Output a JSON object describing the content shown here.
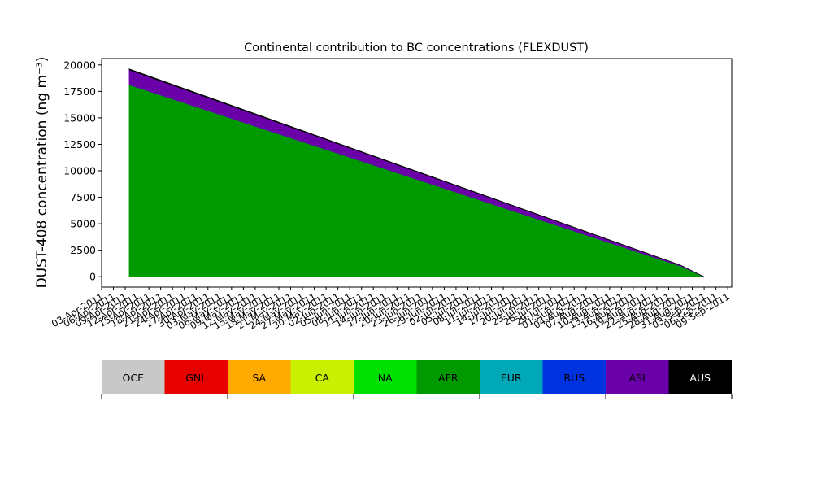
{
  "chart_data": {
    "type": "stacked-area",
    "title": "Continental contribution to BC concentrations (FLEXDUST)",
    "y_label": "DUST-408 concentration (ng m⁻³)",
    "x": [
      "2011-04-10",
      "2011-08-28",
      "2011-09-03"
    ],
    "series": [
      {
        "name": "OCE",
        "color": "#c8c8c8",
        "values": [
          0,
          0,
          0
        ]
      },
      {
        "name": "GNL",
        "color": "#e60000",
        "values": [
          0,
          0,
          0
        ]
      },
      {
        "name": "SA",
        "color": "#ffaa00",
        "values": [
          0,
          0,
          0
        ]
      },
      {
        "name": "CA",
        "color": "#c8f000",
        "values": [
          30,
          5,
          0
        ]
      },
      {
        "name": "NA",
        "color": "#00e000",
        "values": [
          0,
          0,
          0
        ]
      },
      {
        "name": "AFR",
        "color": "#009a00",
        "values": [
          18100,
          1000,
          0
        ]
      },
      {
        "name": "EUR",
        "color": "#00a8b8",
        "values": [
          0,
          0,
          0
        ]
      },
      {
        "name": "RUS",
        "color": "#0032e0",
        "values": [
          0,
          0,
          0
        ]
      },
      {
        "name": "ASI",
        "color": "#6a00a8",
        "values": [
          1400,
          80,
          0
        ]
      },
      {
        "name": "AUS",
        "color": "#000000",
        "values": [
          100,
          20,
          0
        ]
      }
    ],
    "xlim": [
      "2011-04-03",
      "2011-09-10"
    ],
    "xticks": [
      {
        "value": "2011-04-03",
        "label": "03-Apr-2011"
      },
      {
        "value": "2011-04-06",
        "label": "06-Apr-2011"
      },
      {
        "value": "2011-04-09",
        "label": "09-Apr-2011"
      },
      {
        "value": "2011-04-12",
        "label": "12-Apr-2011"
      },
      {
        "value": "2011-04-15",
        "label": "15-Apr-2011"
      },
      {
        "value": "2011-04-18",
        "label": "18-Apr-2011"
      },
      {
        "value": "2011-04-21",
        "label": "21-Apr-2011"
      },
      {
        "value": "2011-04-24",
        "label": "24-Apr-2011"
      },
      {
        "value": "2011-04-27",
        "label": "27-Apr-2011"
      },
      {
        "value": "2011-04-30",
        "label": "30-Apr-2011"
      },
      {
        "value": "2011-05-03",
        "label": "03-May-2011"
      },
      {
        "value": "2011-05-06",
        "label": "06-May-2011"
      },
      {
        "value": "2011-05-09",
        "label": "09-May-2011"
      },
      {
        "value": "2011-05-12",
        "label": "12-May-2011"
      },
      {
        "value": "2011-05-15",
        "label": "15-May-2011"
      },
      {
        "value": "2011-05-18",
        "label": "18-May-2011"
      },
      {
        "value": "2011-05-21",
        "label": "21-May-2011"
      },
      {
        "value": "2011-05-24",
        "label": "24-May-2011"
      },
      {
        "value": "2011-05-27",
        "label": "27-May-2011"
      },
      {
        "value": "2011-05-30",
        "label": "30-May-2011"
      },
      {
        "value": "2011-06-02",
        "label": "02-Jun-2011"
      },
      {
        "value": "2011-06-05",
        "label": "05-Jun-2011"
      },
      {
        "value": "2011-06-08",
        "label": "08-Jun-2011"
      },
      {
        "value": "2011-06-11",
        "label": "11-Jun-2011"
      },
      {
        "value": "2011-06-14",
        "label": "14-Jun-2011"
      },
      {
        "value": "2011-06-17",
        "label": "17-Jun-2011"
      },
      {
        "value": "2011-06-20",
        "label": "20-Jun-2011"
      },
      {
        "value": "2011-06-23",
        "label": "23-Jun-2011"
      },
      {
        "value": "2011-06-26",
        "label": "26-Jun-2011"
      },
      {
        "value": "2011-06-29",
        "label": "29-Jun-2011"
      },
      {
        "value": "2011-07-02",
        "label": "02-Jul-2011"
      },
      {
        "value": "2011-07-05",
        "label": "05-Jul-2011"
      },
      {
        "value": "2011-07-08",
        "label": "08-Jul-2011"
      },
      {
        "value": "2011-07-11",
        "label": "11-Jul-2011"
      },
      {
        "value": "2011-07-14",
        "label": "14-Jul-2011"
      },
      {
        "value": "2011-07-17",
        "label": "17-Jul-2011"
      },
      {
        "value": "2011-07-20",
        "label": "20-Jul-2011"
      },
      {
        "value": "2011-07-23",
        "label": "23-Jul-2011"
      },
      {
        "value": "2011-07-26",
        "label": "26-Jul-2011"
      },
      {
        "value": "2011-07-29",
        "label": "29-Jul-2011"
      },
      {
        "value": "2011-08-01",
        "label": "01-Aug-2011"
      },
      {
        "value": "2011-08-04",
        "label": "04-Aug-2011"
      },
      {
        "value": "2011-08-07",
        "label": "07-Aug-2011"
      },
      {
        "value": "2011-08-10",
        "label": "10-Aug-2011"
      },
      {
        "value": "2011-08-13",
        "label": "13-Aug-2011"
      },
      {
        "value": "2011-08-16",
        "label": "16-Aug-2011"
      },
      {
        "value": "2011-08-19",
        "label": "19-Aug-2011"
      },
      {
        "value": "2011-08-22",
        "label": "22-Aug-2011"
      },
      {
        "value": "2011-08-25",
        "label": "25-Aug-2011"
      },
      {
        "value": "2011-08-28",
        "label": "28-Aug-2011"
      },
      {
        "value": "2011-08-31",
        "label": "31-Aug-2011"
      },
      {
        "value": "2011-09-03",
        "label": "03-Sep-2011"
      },
      {
        "value": "2011-09-06",
        "label": "06-Sep-2011"
      },
      {
        "value": "2011-09-09",
        "label": "09-Sep-2011"
      }
    ],
    "ylim": [
      -980,
      20600
    ],
    "yticks": [
      0,
      2500,
      5000,
      7500,
      10000,
      12500,
      15000,
      17500,
      20000
    ],
    "grid": false
  }
}
